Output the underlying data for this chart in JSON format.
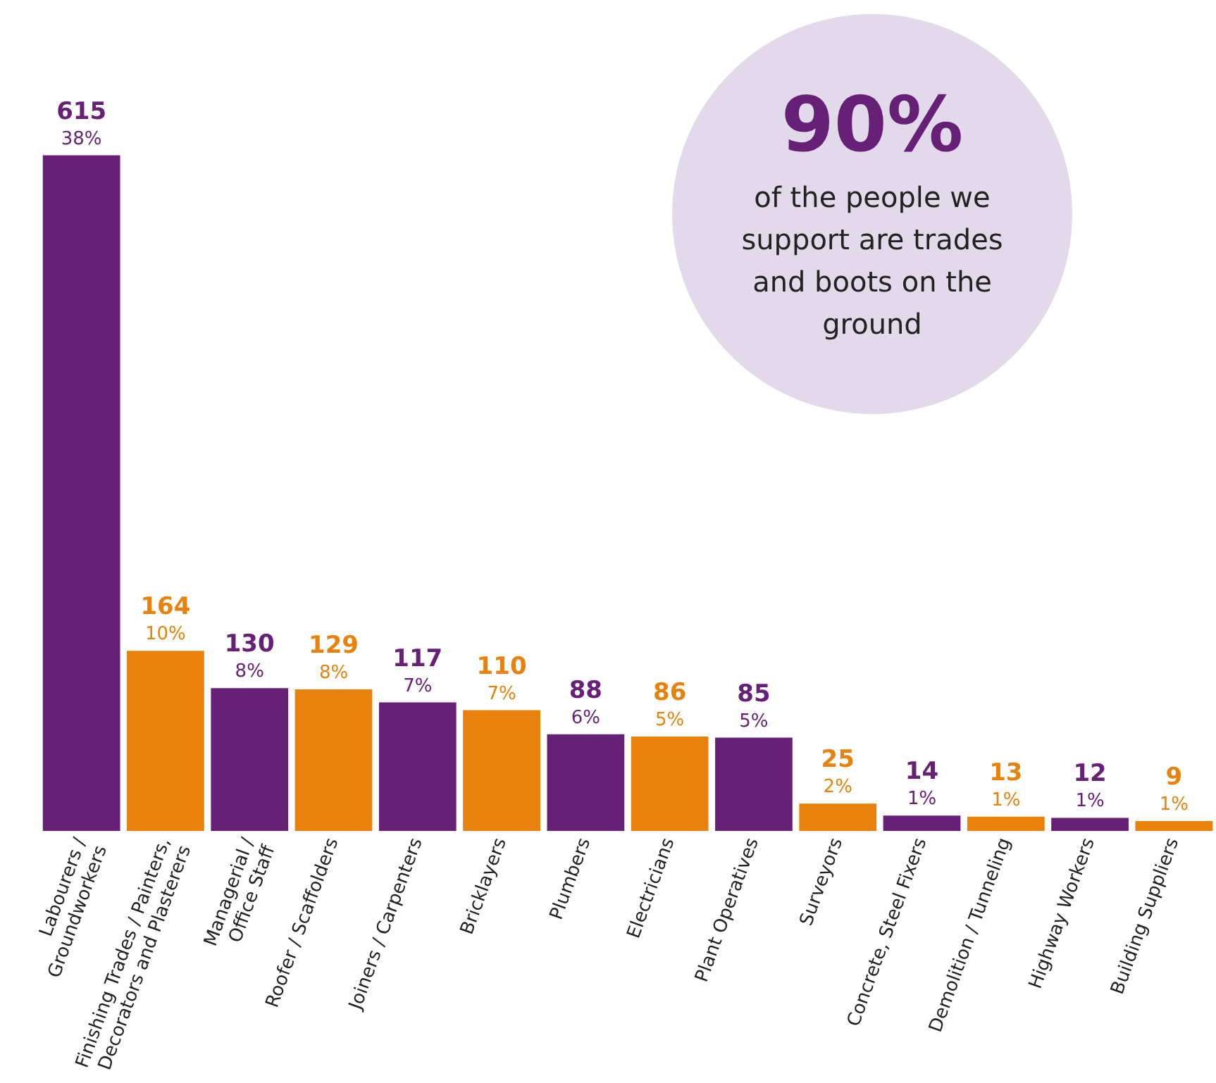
{
  "chart_data": {
    "type": "bar",
    "categories": [
      "Labourers / Groundworkers",
      "Finishing Trades / Painters, Decorators and Plasterers",
      "Managerial / Office Staff",
      "Roofer / Scaffolders",
      "Joiners / Carpenters",
      "Bricklayers",
      "Plumbers",
      "Electricians",
      "Plant Operatives",
      "Surveyors",
      "Concrete, Steel Fixers",
      "Demolition / Tunneling",
      "Highway Workers",
      "Building Suppliers"
    ],
    "values": [
      615,
      164,
      130,
      129,
      117,
      110,
      88,
      86,
      85,
      25,
      14,
      13,
      12,
      9
    ],
    "colors": [
      "#662076",
      "#e8820c",
      "#662076",
      "#e8820c",
      "#662076",
      "#e8820c",
      "#662076",
      "#e8820c",
      "#662076",
      "#e8820c",
      "#662076",
      "#e8820c",
      "#662076",
      "#e8820c"
    ],
    "value_labels": [
      "615\n38%",
      "164\n10%",
      "130\n8%",
      "129\n8%",
      "117\n7%",
      "110\n7%",
      "88\n6%",
      "86\n5%",
      "85\n5%",
      "25\n2%",
      "14\n1%",
      "13\n1%",
      "12\n1%",
      "9\n1%"
    ],
    "annotations": [
      "90%",
      "of the people we support are trades and boots on the ground"
    ],
    "grid": false,
    "legend": false
  }
}
